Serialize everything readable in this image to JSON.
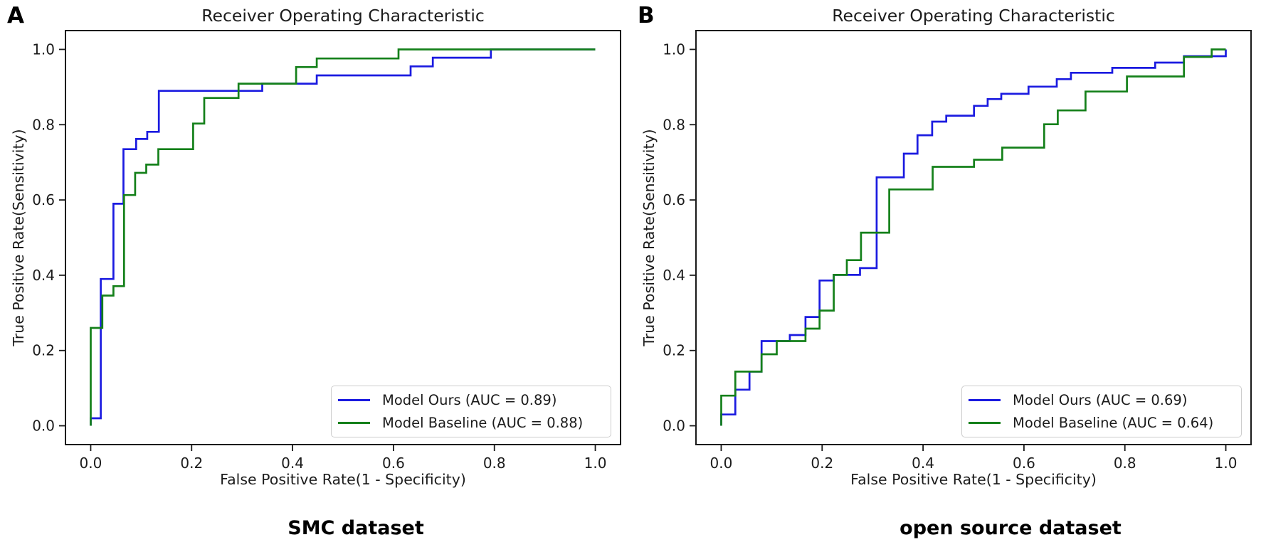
{
  "figure": {
    "background": "#ffffff",
    "text_color": "#1b1b1b",
    "spine_color": "#1a1a1a",
    "accent_blue": "#1b1be0",
    "accent_green": "#14801a"
  },
  "chart_data": [
    {
      "panel_label": "A",
      "type": "line",
      "subtype": "roc-step",
      "title": "Receiver Operating Characteristic",
      "xlabel": "False Positive Rate(1 - Specificity)",
      "ylabel": "True Positive Rate(Sensitivity)",
      "caption": "SMC dataset",
      "xlim": [
        -0.05,
        1.05
      ],
      "ylim": [
        -0.05,
        1.05
      ],
      "xtick_labels": [
        "0.0",
        "0.2",
        "0.4",
        "0.6",
        "0.8",
        "1.0"
      ],
      "ytick_labels": [
        "0.0",
        "0.2",
        "0.4",
        "0.6",
        "0.8",
        "1.0"
      ],
      "grid": false,
      "legend_position": "lower right",
      "series": [
        {
          "name": "Model Ours (AUC = 0.89)",
          "auc": 0.89,
          "color": "#1b1be0",
          "points": [
            [
              0,
              0
            ],
            [
              0,
              0.02
            ],
            [
              0.02,
              0.02
            ],
            [
              0.02,
              0.39
            ],
            [
              0.045,
              0.39
            ],
            [
              0.045,
              0.59
            ],
            [
              0.065,
              0.59
            ],
            [
              0.065,
              0.735
            ],
            [
              0.09,
              0.735
            ],
            [
              0.09,
              0.762
            ],
            [
              0.112,
              0.762
            ],
            [
              0.112,
              0.781
            ],
            [
              0.135,
              0.781
            ],
            [
              0.135,
              0.89
            ],
            [
              0.34,
              0.89
            ],
            [
              0.34,
              0.909
            ],
            [
              0.448,
              0.909
            ],
            [
              0.448,
              0.931
            ],
            [
              0.634,
              0.931
            ],
            [
              0.634,
              0.955
            ],
            [
              0.678,
              0.955
            ],
            [
              0.678,
              0.978
            ],
            [
              0.793,
              0.978
            ],
            [
              0.793,
              1.0
            ],
            [
              1.0,
              1.0
            ]
          ]
        },
        {
          "name": "Model Baseline (AUC = 0.88)",
          "auc": 0.88,
          "color": "#14801a",
          "points": [
            [
              0,
              0
            ],
            [
              0,
              0.26
            ],
            [
              0.023,
              0.26
            ],
            [
              0.023,
              0.346
            ],
            [
              0.045,
              0.346
            ],
            [
              0.045,
              0.371
            ],
            [
              0.066,
              0.371
            ],
            [
              0.066,
              0.613
            ],
            [
              0.088,
              0.613
            ],
            [
              0.088,
              0.672
            ],
            [
              0.11,
              0.672
            ],
            [
              0.11,
              0.694
            ],
            [
              0.134,
              0.694
            ],
            [
              0.134,
              0.735
            ],
            [
              0.203,
              0.735
            ],
            [
              0.203,
              0.803
            ],
            [
              0.225,
              0.803
            ],
            [
              0.225,
              0.871
            ],
            [
              0.293,
              0.871
            ],
            [
              0.293,
              0.909
            ],
            [
              0.407,
              0.909
            ],
            [
              0.407,
              0.953
            ],
            [
              0.448,
              0.953
            ],
            [
              0.448,
              0.976
            ],
            [
              0.61,
              0.976
            ],
            [
              0.61,
              1.0
            ],
            [
              1.0,
              1.0
            ]
          ]
        }
      ]
    },
    {
      "panel_label": "B",
      "type": "line",
      "subtype": "roc-step",
      "title": "Receiver Operating Characteristic",
      "xlabel": "False Positive Rate(1 - Specificity)",
      "ylabel": "True Positive Rate(Sensitivity)",
      "caption": "open source dataset",
      "xlim": [
        -0.05,
        1.05
      ],
      "ylim": [
        -0.05,
        1.05
      ],
      "xtick_labels": [
        "0.0",
        "0.2",
        "0.4",
        "0.6",
        "0.8",
        "1.0"
      ],
      "ytick_labels": [
        "0.0",
        "0.2",
        "0.4",
        "0.6",
        "0.8",
        "1.0"
      ],
      "grid": false,
      "legend_position": "lower right",
      "series": [
        {
          "name": "Model Ours (AUC = 0.69)",
          "auc": 0.69,
          "color": "#1b1be0",
          "points": [
            [
              0,
              0
            ],
            [
              0,
              0.03
            ],
            [
              0.028,
              0.03
            ],
            [
              0.028,
              0.096
            ],
            [
              0.056,
              0.096
            ],
            [
              0.056,
              0.144
            ],
            [
              0.08,
              0.144
            ],
            [
              0.08,
              0.225
            ],
            [
              0.136,
              0.225
            ],
            [
              0.136,
              0.241
            ],
            [
              0.167,
              0.241
            ],
            [
              0.167,
              0.289
            ],
            [
              0.195,
              0.289
            ],
            [
              0.195,
              0.386
            ],
            [
              0.223,
              0.386
            ],
            [
              0.223,
              0.401
            ],
            [
              0.275,
              0.401
            ],
            [
              0.275,
              0.419
            ],
            [
              0.308,
              0.419
            ],
            [
              0.308,
              0.66
            ],
            [
              0.362,
              0.66
            ],
            [
              0.362,
              0.723
            ],
            [
              0.389,
              0.723
            ],
            [
              0.389,
              0.772
            ],
            [
              0.418,
              0.772
            ],
            [
              0.418,
              0.808
            ],
            [
              0.446,
              0.808
            ],
            [
              0.446,
              0.824
            ],
            [
              0.501,
              0.824
            ],
            [
              0.501,
              0.85
            ],
            [
              0.528,
              0.85
            ],
            [
              0.528,
              0.868
            ],
            [
              0.555,
              0.868
            ],
            [
              0.555,
              0.882
            ],
            [
              0.609,
              0.882
            ],
            [
              0.609,
              0.901
            ],
            [
              0.665,
              0.901
            ],
            [
              0.665,
              0.921
            ],
            [
              0.693,
              0.921
            ],
            [
              0.693,
              0.938
            ],
            [
              0.775,
              0.938
            ],
            [
              0.775,
              0.951
            ],
            [
              0.86,
              0.951
            ],
            [
              0.86,
              0.965
            ],
            [
              0.917,
              0.965
            ],
            [
              0.917,
              0.982
            ],
            [
              1.0,
              0.982
            ],
            [
              1.0,
              1.0
            ]
          ]
        },
        {
          "name": "Model Baseline (AUC = 0.64)",
          "auc": 0.64,
          "color": "#14801a",
          "points": [
            [
              0,
              0
            ],
            [
              0,
              0.08
            ],
            [
              0.028,
              0.08
            ],
            [
              0.028,
              0.144
            ],
            [
              0.08,
              0.144
            ],
            [
              0.08,
              0.19
            ],
            [
              0.11,
              0.19
            ],
            [
              0.11,
              0.225
            ],
            [
              0.167,
              0.225
            ],
            [
              0.167,
              0.258
            ],
            [
              0.195,
              0.258
            ],
            [
              0.195,
              0.306
            ],
            [
              0.223,
              0.306
            ],
            [
              0.223,
              0.401
            ],
            [
              0.249,
              0.401
            ],
            [
              0.249,
              0.44
            ],
            [
              0.277,
              0.44
            ],
            [
              0.277,
              0.513
            ],
            [
              0.333,
              0.513
            ],
            [
              0.333,
              0.628
            ],
            [
              0.419,
              0.628
            ],
            [
              0.419,
              0.688
            ],
            [
              0.501,
              0.688
            ],
            [
              0.501,
              0.707
            ],
            [
              0.557,
              0.707
            ],
            [
              0.557,
              0.739
            ],
            [
              0.64,
              0.739
            ],
            [
              0.64,
              0.801
            ],
            [
              0.667,
              0.801
            ],
            [
              0.667,
              0.838
            ],
            [
              0.722,
              0.838
            ],
            [
              0.722,
              0.888
            ],
            [
              0.804,
              0.888
            ],
            [
              0.804,
              0.928
            ],
            [
              0.917,
              0.928
            ],
            [
              0.917,
              0.98
            ],
            [
              0.972,
              0.98
            ],
            [
              0.972,
              1.0
            ],
            [
              1.0,
              1.0
            ]
          ]
        }
      ]
    }
  ]
}
